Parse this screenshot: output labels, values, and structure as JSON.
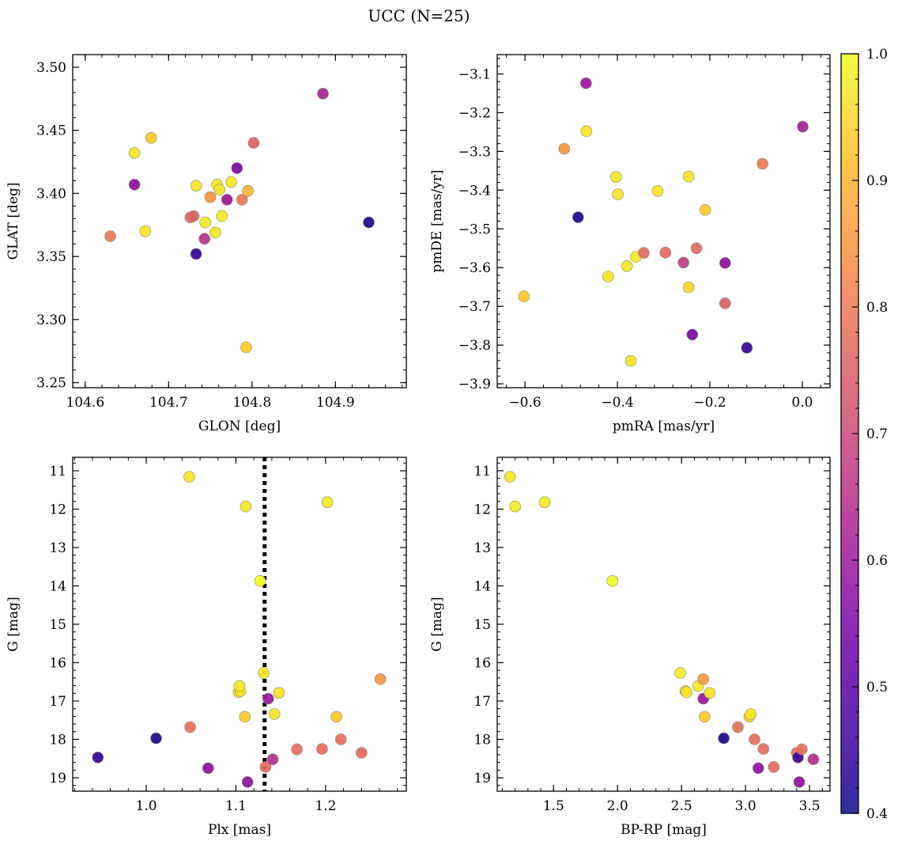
{
  "figure_title": "UCC (N=25)",
  "colorbar": {
    "min": 0.4,
    "max": 1.0,
    "ticks": [
      0.4,
      0.5,
      0.6,
      0.7,
      0.8,
      0.9,
      1.0
    ],
    "tick_labels": [
      "0.4",
      "0.5",
      "0.6",
      "0.7",
      "0.8",
      "0.9",
      "1.0"
    ],
    "colormap": "plasma",
    "colors": [
      "#0d0887",
      "#46039f",
      "#7201a8",
      "#9c179e",
      "#bd3786",
      "#d8576b",
      "#ed7953",
      "#fb9f3a",
      "#fdca26",
      "#f0f921"
    ]
  },
  "chart_data": [
    {
      "type": "scatter",
      "name": "glon-glat",
      "xlabel": "GLON [deg]",
      "ylabel": "GLAT [deg]",
      "xlim": [
        104.585,
        104.985
      ],
      "ylim": [
        3.246,
        3.51
      ],
      "y_inverted": false,
      "xticks": [
        104.6,
        104.7,
        104.8,
        104.9
      ],
      "xtick_labels": [
        "104.6",
        "104.7",
        "104.8",
        "104.9"
      ],
      "xminor_step": 0.02,
      "yticks": [
        3.25,
        3.3,
        3.35,
        3.4,
        3.45,
        3.5
      ],
      "ytick_labels": [
        "3.25",
        "3.30",
        "3.35",
        "3.40",
        "3.45",
        "3.50"
      ],
      "yminor_step": 0.01,
      "points": [
        {
          "x": 104.63,
          "y": 3.366,
          "c": 0.8
        },
        {
          "x": 104.659,
          "y": 3.432,
          "c": 0.97
        },
        {
          "x": 104.659,
          "y": 3.407,
          "c": 0.58
        },
        {
          "x": 104.672,
          "y": 3.37,
          "c": 0.97
        },
        {
          "x": 104.679,
          "y": 3.444,
          "c": 0.93
        },
        {
          "x": 104.726,
          "y": 3.381,
          "c": 0.77
        },
        {
          "x": 104.73,
          "y": 3.382,
          "c": 0.75
        },
        {
          "x": 104.733,
          "y": 3.406,
          "c": 0.97
        },
        {
          "x": 104.733,
          "y": 3.352,
          "c": 0.45
        },
        {
          "x": 104.743,
          "y": 3.364,
          "c": 0.65
        },
        {
          "x": 104.744,
          "y": 3.377,
          "c": 0.98
        },
        {
          "x": 104.75,
          "y": 3.397,
          "c": 0.85
        },
        {
          "x": 104.756,
          "y": 3.369,
          "c": 0.97
        },
        {
          "x": 104.758,
          "y": 3.407,
          "c": 0.97
        },
        {
          "x": 104.761,
          "y": 3.403,
          "c": 0.97
        },
        {
          "x": 104.764,
          "y": 3.382,
          "c": 0.98
        },
        {
          "x": 104.77,
          "y": 3.395,
          "c": 0.6
        },
        {
          "x": 104.775,
          "y": 3.409,
          "c": 0.97
        },
        {
          "x": 104.782,
          "y": 3.42,
          "c": 0.55
        },
        {
          "x": 104.788,
          "y": 3.395,
          "c": 0.8
        },
        {
          "x": 104.793,
          "y": 3.278,
          "c": 0.93
        },
        {
          "x": 104.795,
          "y": 3.402,
          "c": 0.9
        },
        {
          "x": 104.802,
          "y": 3.44,
          "c": 0.75
        },
        {
          "x": 104.885,
          "y": 3.479,
          "c": 0.63
        },
        {
          "x": 104.94,
          "y": 3.377,
          "c": 0.42
        }
      ]
    },
    {
      "type": "scatter",
      "name": "pmra-pmde",
      "xlabel": "pmRA [mas/yr]",
      "ylabel": "pmDE [mas/yr]",
      "xlim": [
        -0.66,
        0.06
      ],
      "ylim": [
        -3.91,
        -3.05
      ],
      "y_inverted": false,
      "xticks": [
        -0.6,
        -0.4,
        -0.2,
        0.0
      ],
      "xtick_labels": [
        "−0.6",
        "−0.4",
        "−0.2",
        "0.0"
      ],
      "xminor_step": 0.04,
      "yticks": [
        -3.9,
        -3.8,
        -3.7,
        -3.6,
        -3.5,
        -3.4,
        -3.3,
        -3.2,
        -3.1
      ],
      "ytick_labels": [
        "−3.9",
        "−3.8",
        "−3.7",
        "−3.6",
        "−3.5",
        "−3.4",
        "−3.3",
        "−3.2",
        "−3.1"
      ],
      "yminor_step": 0.02,
      "points": [
        {
          "x": -0.602,
          "y": -3.674,
          "c": 0.93
        },
        {
          "x": -0.515,
          "y": -3.293,
          "c": 0.85
        },
        {
          "x": -0.485,
          "y": -3.47,
          "c": 0.42
        },
        {
          "x": -0.468,
          "y": -3.124,
          "c": 0.6
        },
        {
          "x": -0.467,
          "y": -3.248,
          "c": 0.97
        },
        {
          "x": -0.42,
          "y": -3.623,
          "c": 0.97
        },
        {
          "x": -0.403,
          "y": -3.366,
          "c": 0.97
        },
        {
          "x": -0.399,
          "y": -3.411,
          "c": 0.97
        },
        {
          "x": -0.379,
          "y": -3.596,
          "c": 0.97
        },
        {
          "x": -0.371,
          "y": -3.841,
          "c": 0.97
        },
        {
          "x": -0.36,
          "y": -3.572,
          "c": 0.98
        },
        {
          "x": -0.343,
          "y": -3.562,
          "c": 0.77
        },
        {
          "x": -0.313,
          "y": -3.402,
          "c": 0.97
        },
        {
          "x": -0.296,
          "y": -3.561,
          "c": 0.77
        },
        {
          "x": -0.257,
          "y": -3.587,
          "c": 0.68
        },
        {
          "x": -0.246,
          "y": -3.651,
          "c": 0.95
        },
        {
          "x": -0.246,
          "y": -3.365,
          "c": 0.97
        },
        {
          "x": -0.238,
          "y": -3.773,
          "c": 0.55
        },
        {
          "x": -0.229,
          "y": -3.55,
          "c": 0.77
        },
        {
          "x": -0.21,
          "y": -3.451,
          "c": 0.93
        },
        {
          "x": -0.167,
          "y": -3.588,
          "c": 0.58
        },
        {
          "x": -0.167,
          "y": -3.692,
          "c": 0.75
        },
        {
          "x": -0.12,
          "y": -3.807,
          "c": 0.45
        },
        {
          "x": -0.086,
          "y": -3.332,
          "c": 0.8
        },
        {
          "x": 0.001,
          "y": -3.236,
          "c": 0.62
        }
      ]
    },
    {
      "type": "scatter",
      "name": "plx-g",
      "xlabel": "Plx [mas]",
      "ylabel": "G [mag]",
      "xlim": [
        0.918,
        1.29
      ],
      "ylim": [
        19.35,
        10.65
      ],
      "y_inverted": true,
      "xticks": [
        1.0,
        1.1,
        1.2
      ],
      "xtick_labels": [
        "1.0",
        "1.1",
        "1.2"
      ],
      "xminor_step": 0.02,
      "yticks": [
        11,
        12,
        13,
        14,
        15,
        16,
        17,
        18,
        19
      ],
      "ytick_labels": [
        "11",
        "12",
        "13",
        "14",
        "15",
        "16",
        "17",
        "18",
        "19"
      ],
      "yminor_step": 0.2,
      "vline": 1.132,
      "points": [
        {
          "x": 0.946,
          "y": 18.47,
          "c": 0.45
        },
        {
          "x": 1.011,
          "y": 17.97,
          "c": 0.42
        },
        {
          "x": 1.048,
          "y": 11.16,
          "c": 0.97
        },
        {
          "x": 1.049,
          "y": 17.68,
          "c": 0.78
        },
        {
          "x": 1.069,
          "y": 18.75,
          "c": 0.58
        },
        {
          "x": 1.103,
          "y": 16.77,
          "c": 0.97
        },
        {
          "x": 1.105,
          "y": 16.74,
          "c": 0.97
        },
        {
          "x": 1.104,
          "y": 16.61,
          "c": 0.98
        },
        {
          "x": 1.11,
          "y": 17.41,
          "c": 0.93
        },
        {
          "x": 1.111,
          "y": 11.93,
          "c": 0.98
        },
        {
          "x": 1.113,
          "y": 19.11,
          "c": 0.58
        },
        {
          "x": 1.127,
          "y": 13.87,
          "c": 1.0
        },
        {
          "x": 1.131,
          "y": 16.27,
          "c": 0.98
        },
        {
          "x": 1.133,
          "y": 18.72,
          "c": 0.77
        },
        {
          "x": 1.136,
          "y": 16.94,
          "c": 0.6
        },
        {
          "x": 1.141,
          "y": 18.52,
          "c": 0.65
        },
        {
          "x": 1.143,
          "y": 17.34,
          "c": 0.97
        },
        {
          "x": 1.148,
          "y": 16.79,
          "c": 0.97
        },
        {
          "x": 1.168,
          "y": 18.26,
          "c": 0.78
        },
        {
          "x": 1.196,
          "y": 18.25,
          "c": 0.78
        },
        {
          "x": 1.202,
          "y": 11.82,
          "c": 0.98
        },
        {
          "x": 1.212,
          "y": 17.41,
          "c": 0.93
        },
        {
          "x": 1.217,
          "y": 18.0,
          "c": 0.78
        },
        {
          "x": 1.24,
          "y": 18.35,
          "c": 0.77
        },
        {
          "x": 1.261,
          "y": 16.43,
          "c": 0.85
        }
      ]
    },
    {
      "type": "scatter",
      "name": "bprp-g",
      "xlabel": "BP-RP [mag]",
      "ylabel": "G [mag]",
      "xlim": [
        1.06,
        3.66
      ],
      "ylim": [
        19.35,
        10.65
      ],
      "y_inverted": true,
      "xticks": [
        1.5,
        2.0,
        2.5,
        3.0,
        3.5
      ],
      "xtick_labels": [
        "1.5",
        "2.0",
        "2.5",
        "3.0",
        "3.5"
      ],
      "xminor_step": 0.1,
      "yticks": [
        11,
        12,
        13,
        14,
        15,
        16,
        17,
        18,
        19
      ],
      "ytick_labels": [
        "11",
        "12",
        "13",
        "14",
        "15",
        "16",
        "17",
        "18",
        "19"
      ],
      "yminor_step": 0.2,
      "points": [
        {
          "x": 1.16,
          "y": 11.16,
          "c": 0.97
        },
        {
          "x": 1.2,
          "y": 11.93,
          "c": 0.98
        },
        {
          "x": 1.43,
          "y": 11.82,
          "c": 0.98
        },
        {
          "x": 1.96,
          "y": 13.87,
          "c": 1.0
        },
        {
          "x": 2.49,
          "y": 16.27,
          "c": 0.98
        },
        {
          "x": 2.53,
          "y": 16.74,
          "c": 0.97
        },
        {
          "x": 2.54,
          "y": 16.77,
          "c": 0.97
        },
        {
          "x": 2.63,
          "y": 16.61,
          "c": 0.98
        },
        {
          "x": 2.67,
          "y": 16.43,
          "c": 0.85
        },
        {
          "x": 2.67,
          "y": 16.94,
          "c": 0.6
        },
        {
          "x": 2.68,
          "y": 17.41,
          "c": 0.93
        },
        {
          "x": 2.72,
          "y": 16.79,
          "c": 0.97
        },
        {
          "x": 2.83,
          "y": 17.97,
          "c": 0.42
        },
        {
          "x": 2.94,
          "y": 17.68,
          "c": 0.78
        },
        {
          "x": 3.03,
          "y": 17.41,
          "c": 0.93
        },
        {
          "x": 3.04,
          "y": 17.34,
          "c": 0.97
        },
        {
          "x": 3.07,
          "y": 18.0,
          "c": 0.78
        },
        {
          "x": 3.1,
          "y": 18.75,
          "c": 0.58
        },
        {
          "x": 3.14,
          "y": 18.25,
          "c": 0.78
        },
        {
          "x": 3.22,
          "y": 18.72,
          "c": 0.77
        },
        {
          "x": 3.4,
          "y": 18.35,
          "c": 0.77
        },
        {
          "x": 3.41,
          "y": 18.47,
          "c": 0.45
        },
        {
          "x": 3.42,
          "y": 19.11,
          "c": 0.58
        },
        {
          "x": 3.44,
          "y": 18.26,
          "c": 0.78
        },
        {
          "x": 3.53,
          "y": 18.52,
          "c": 0.65
        }
      ]
    }
  ]
}
